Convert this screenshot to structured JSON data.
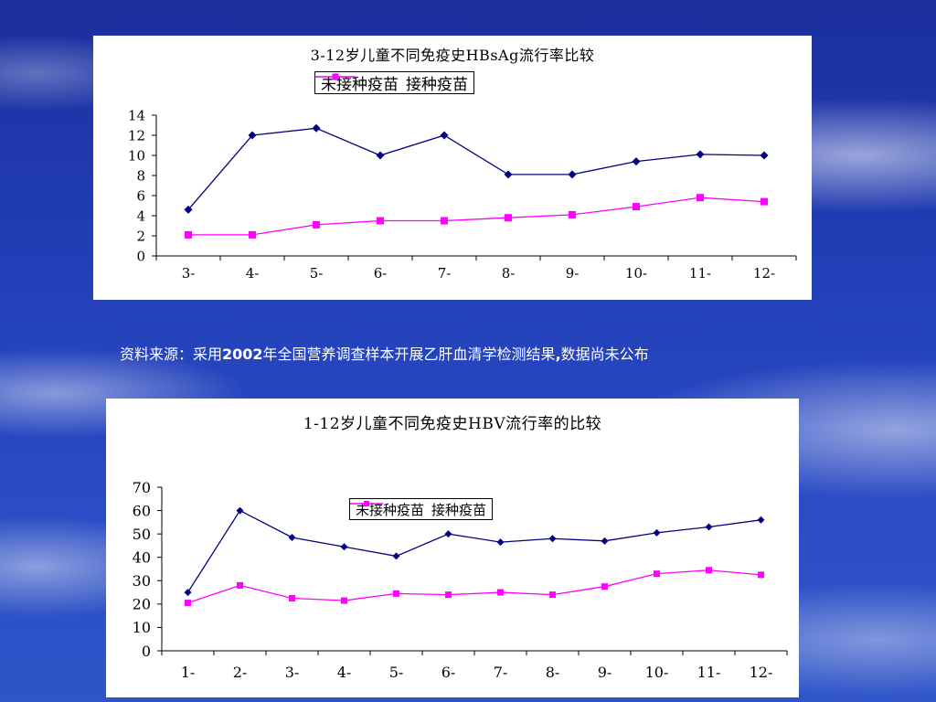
{
  "source_note": {
    "prefix": "资料来源：采用",
    "year": "2002",
    "middle": "年全国营养调查样本开展乙肝血清学检测结果",
    "comma": ",",
    "suffix": "数据尚未公布"
  },
  "chart_data": [
    {
      "type": "line",
      "title": "3-12岁儿童不同免疫史HBsAg流行率比较",
      "categories": [
        "3-",
        "4-",
        "5-",
        "6-",
        "7-",
        "8-",
        "9-",
        "10-",
        "11-",
        "12-"
      ],
      "ylim": [
        0,
        14
      ],
      "yticks": [
        0,
        2,
        4,
        6,
        8,
        10,
        12,
        14
      ],
      "grid": false,
      "legend": "top",
      "series": [
        {
          "name": "未接种疫苗",
          "color": "#000080",
          "marker": "diamond",
          "values": [
            4.6,
            12.0,
            12.7,
            10.0,
            12.0,
            8.1,
            8.1,
            9.4,
            10.1,
            10.0
          ]
        },
        {
          "name": "接种疫苗",
          "color": "#ff00ff",
          "marker": "square",
          "values": [
            2.1,
            2.1,
            3.1,
            3.5,
            3.5,
            3.8,
            4.1,
            4.9,
            5.8,
            5.4
          ]
        }
      ]
    },
    {
      "type": "line",
      "title": "1-12岁儿童不同免疫史HBV流行率的比较",
      "categories": [
        "1-",
        "2-",
        "3-",
        "4-",
        "5-",
        "6-",
        "7-",
        "8-",
        "9-",
        "10-",
        "11-",
        "12-"
      ],
      "ylim": [
        0,
        70
      ],
      "yticks": [
        0,
        10,
        20,
        30,
        40,
        50,
        60,
        70
      ],
      "grid": false,
      "legend": "top",
      "series": [
        {
          "name": "未接种疫苗",
          "color": "#000080",
          "marker": "diamond",
          "values": [
            25,
            60,
            48.5,
            44.5,
            40.5,
            50,
            46.5,
            48,
            47,
            50.5,
            53,
            56
          ]
        },
        {
          "name": "接种疫苗",
          "color": "#ff00ff",
          "marker": "square",
          "values": [
            20.5,
            28,
            22.5,
            21.5,
            24.5,
            24,
            25,
            24,
            27.5,
            33,
            34.5,
            32.5
          ]
        }
      ]
    }
  ]
}
